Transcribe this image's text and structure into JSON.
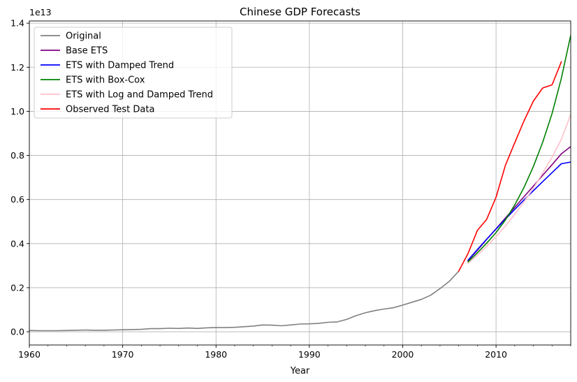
{
  "chart_data": {
    "type": "line",
    "title": "Chinese GDP Forecasts",
    "xlabel": "Year",
    "ylabel": "",
    "y_scale_label": "1e13",
    "xlim": [
      1960,
      2018
    ],
    "ylim": [
      -0.06,
      1.41
    ],
    "y_multiplier": 10000000000000.0,
    "grid": true,
    "legend_position": "upper-left",
    "x_ticks": [
      1960,
      1970,
      1980,
      1990,
      2000,
      2010
    ],
    "y_ticks": [
      0.0,
      0.2,
      0.4,
      0.6,
      0.8,
      1.0,
      1.2,
      1.4
    ],
    "y_tick_labels": [
      "0.0",
      "0.2",
      "0.4",
      "0.6",
      "0.8",
      "1.0",
      "1.2",
      "1.4"
    ],
    "series": [
      {
        "name": "Original",
        "color": "#808080",
        "x": [
          1960,
          1961,
          1962,
          1963,
          1964,
          1965,
          1966,
          1967,
          1968,
          1969,
          1970,
          1971,
          1972,
          1973,
          1974,
          1975,
          1976,
          1977,
          1978,
          1979,
          1980,
          1981,
          1982,
          1983,
          1984,
          1985,
          1986,
          1987,
          1988,
          1989,
          1990,
          1991,
          1992,
          1993,
          1994,
          1995,
          1996,
          1997,
          1998,
          1999,
          2000,
          2001,
          2002,
          2003,
          2004,
          2005,
          2006
        ],
        "y": [
          0.006,
          0.005,
          0.005,
          0.005,
          0.006,
          0.007,
          0.008,
          0.007,
          0.007,
          0.008,
          0.009,
          0.01,
          0.011,
          0.014,
          0.014,
          0.016,
          0.015,
          0.017,
          0.015,
          0.018,
          0.019,
          0.019,
          0.02,
          0.023,
          0.026,
          0.031,
          0.03,
          0.027,
          0.031,
          0.035,
          0.036,
          0.038,
          0.043,
          0.045,
          0.056,
          0.073,
          0.086,
          0.096,
          0.103,
          0.109,
          0.121,
          0.134,
          0.147,
          0.166,
          0.196,
          0.229,
          0.275
        ]
      },
      {
        "name": "Base ETS",
        "color": "#800080",
        "x": [
          2007,
          2008,
          2009,
          2010,
          2011,
          2012,
          2013,
          2014,
          2015,
          2016,
          2017,
          2018
        ],
        "y": [
          0.322,
          0.37,
          0.419,
          0.467,
          0.516,
          0.564,
          0.613,
          0.661,
          0.71,
          0.758,
          0.807,
          0.84
        ]
      },
      {
        "name": "ETS with Damped Trend",
        "color": "#0000ff",
        "x": [
          2007,
          2008,
          2009,
          2010,
          2011,
          2012,
          2013,
          2014,
          2015,
          2016,
          2017,
          2018
        ],
        "y": [
          0.325,
          0.373,
          0.42,
          0.466,
          0.511,
          0.555,
          0.598,
          0.64,
          0.681,
          0.722,
          0.762,
          0.77
        ]
      },
      {
        "name": "ETS with Box-Cox",
        "color": "#008000",
        "x": [
          2007,
          2008,
          2009,
          2010,
          2011,
          2012,
          2013,
          2014,
          2015,
          2016,
          2017,
          2018
        ],
        "y": [
          0.317,
          0.358,
          0.402,
          0.45,
          0.507,
          0.575,
          0.655,
          0.75,
          0.86,
          0.99,
          1.15,
          1.345
        ]
      },
      {
        "name": "ETS with Log and Damped Trend",
        "color": "#ffc0cb",
        "x": [
          2007,
          2008,
          2009,
          2010,
          2011,
          2012,
          2013,
          2014,
          2015,
          2016,
          2017,
          2018
        ],
        "y": [
          0.31,
          0.347,
          0.388,
          0.432,
          0.48,
          0.532,
          0.59,
          0.652,
          0.72,
          0.792,
          0.873,
          0.985
        ]
      },
      {
        "name": "Observed Test Data",
        "color": "#ff0000",
        "x": [
          2006,
          2007,
          2008,
          2009,
          2010,
          2011,
          2012,
          2013,
          2014,
          2015,
          2016,
          2017
        ],
        "y": [
          0.275,
          0.355,
          0.46,
          0.51,
          0.61,
          0.755,
          0.857,
          0.957,
          1.047,
          1.106,
          1.12,
          1.225
        ]
      }
    ]
  }
}
